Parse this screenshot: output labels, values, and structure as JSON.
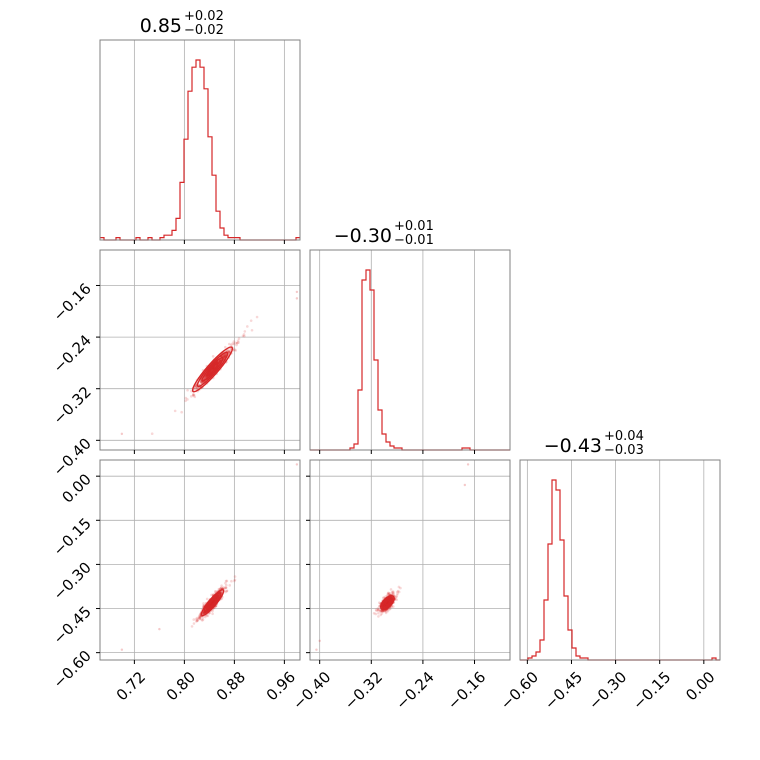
{
  "chart_data": {
    "type": "corner",
    "color": "#d62728",
    "grid": true,
    "parameters": [
      {
        "title_value": "0.85",
        "title_plus": "+0.02",
        "title_minus": "−0.02",
        "range": [
          0.665,
          0.985
        ]
      },
      {
        "title_value": "−0.30",
        "title_plus": "+0.01",
        "title_minus": "−0.01",
        "range": [
          -0.415,
          -0.105
        ]
      },
      {
        "title_value": "−0.43",
        "title_plus": "+0.04",
        "title_minus": "−0.03",
        "range": [
          -0.625,
          0.055
        ]
      }
    ],
    "ticks": [
      {
        "values": [
          0.72,
          0.8,
          0.88,
          0.96
        ],
        "labels": [
          "0.72",
          "0.80",
          "0.88",
          "0.96"
        ]
      },
      {
        "values": [
          -0.4,
          -0.32,
          -0.24,
          -0.16
        ],
        "labels": [
          "−0.40",
          "−0.32",
          "−0.24",
          "−0.16"
        ]
      },
      {
        "values": [
          -0.6,
          -0.45,
          -0.3,
          -0.15,
          0.0
        ],
        "labels": [
          "−0.60",
          "−0.45",
          "−0.30",
          "−0.15",
          "0.00"
        ]
      }
    ],
    "histograms": [
      {
        "param": 0,
        "bin_start": 0.665,
        "bin_width": 0.0064,
        "counts": [
          1,
          0,
          0,
          0,
          1,
          0,
          0,
          0,
          0,
          1,
          0,
          0,
          1,
          0,
          0,
          1,
          2,
          2,
          4,
          9,
          24,
          42,
          62,
          72,
          75,
          72,
          63,
          43,
          27,
          12,
          5,
          2,
          1,
          1,
          1,
          0,
          0,
          0,
          0,
          0,
          0,
          0,
          0,
          0,
          0,
          0,
          0,
          0,
          0,
          1
        ]
      },
      {
        "param": 1,
        "bin_start": -0.415,
        "bin_width": 0.0062,
        "counts": [
          0,
          0,
          0,
          0,
          0,
          0,
          0,
          0,
          0,
          0,
          1,
          3,
          30,
          85,
          90,
          80,
          45,
          20,
          8,
          4,
          2,
          1,
          1,
          0,
          0,
          0,
          0,
          0,
          0,
          0,
          0,
          0,
          0,
          0,
          0,
          0,
          0,
          0,
          1,
          1,
          0,
          0,
          0,
          0,
          0,
          0,
          0,
          0,
          0,
          0
        ]
      },
      {
        "param": 2,
        "bin_start": -0.625,
        "bin_width": 0.0136,
        "counts": [
          0,
          0,
          1,
          2,
          4,
          10,
          30,
          58,
          90,
          85,
          60,
          32,
          15,
          6,
          2,
          1,
          1,
          0,
          0,
          0,
          0,
          0,
          0,
          0,
          0,
          0,
          0,
          0,
          0,
          0,
          0,
          0,
          0,
          0,
          0,
          0,
          0,
          0,
          0,
          0,
          0,
          0,
          0,
          0,
          0,
          0,
          0,
          0,
          1,
          0
        ]
      }
    ],
    "scatter_panels": [
      {
        "x_param": 0,
        "y_param": 1,
        "center": [
          0.845,
          -0.29
        ],
        "slope": 1.1,
        "spread_along": 0.022,
        "spread_across": 0.004,
        "outliers": [
          [
            0.98,
            -0.17
          ],
          [
            0.98,
            -0.18
          ],
          [
            0.7,
            -0.39
          ]
        ]
      },
      {
        "x_param": 0,
        "y_param": 2,
        "center": [
          0.845,
          -0.43
        ],
        "slope": 2.5,
        "spread_along": 0.022,
        "spread_across": 0.006,
        "outliers": [
          [
            0.98,
            0.04
          ],
          [
            0.7,
            -0.59
          ],
          [
            0.76,
            -0.52
          ]
        ]
      },
      {
        "x_param": 1,
        "y_param": 2,
        "center": [
          -0.295,
          -0.43
        ],
        "slope": 2.3,
        "spread_along": 0.011,
        "spread_across": 0.007,
        "outliers": [
          [
            -0.17,
            0.04
          ],
          [
            -0.175,
            -0.03
          ],
          [
            -0.4,
            -0.56
          ],
          [
            -0.405,
            -0.59
          ]
        ]
      }
    ]
  }
}
